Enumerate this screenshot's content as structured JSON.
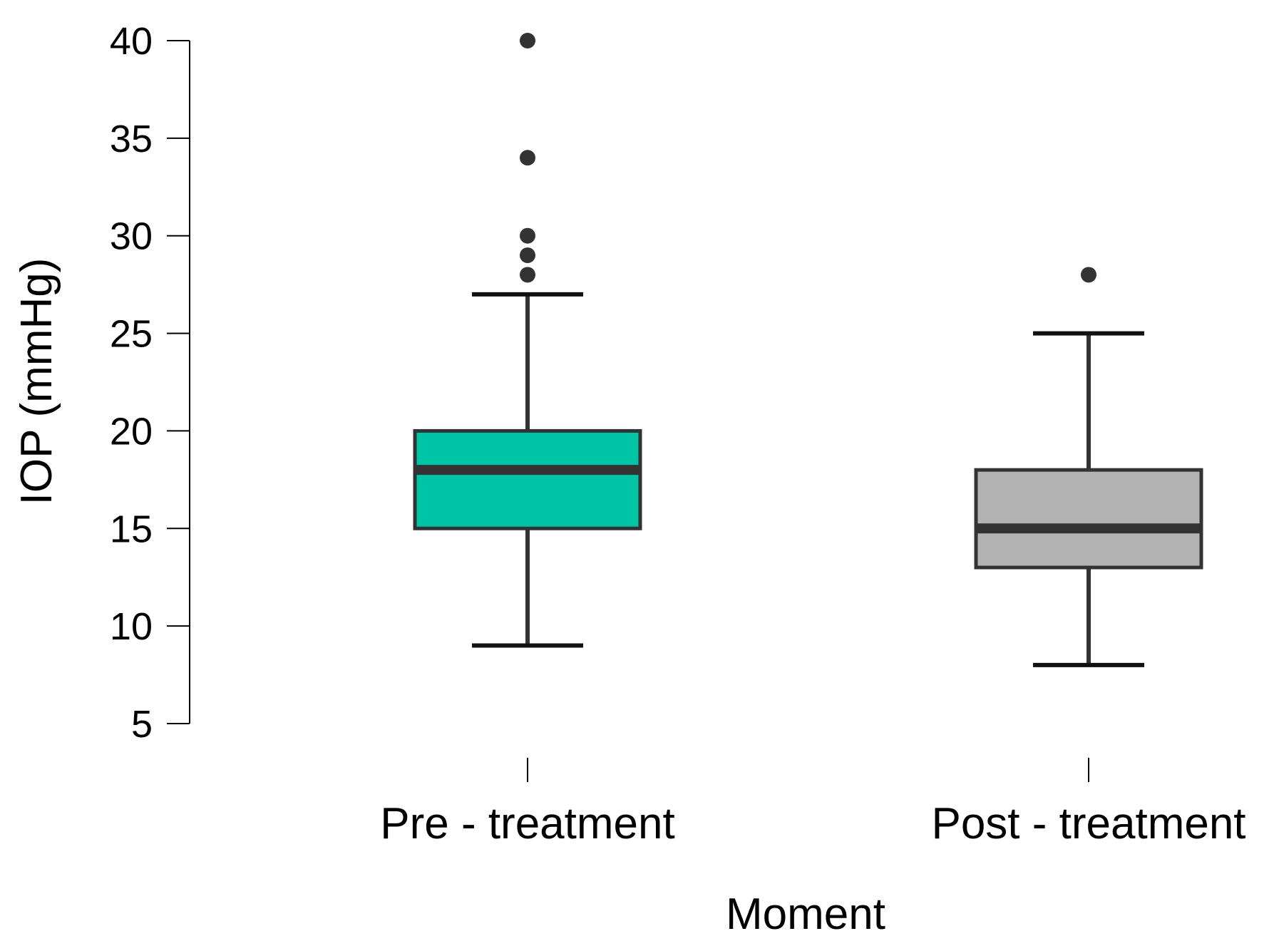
{
  "chart_data": {
    "type": "box",
    "title": "",
    "xlabel": "Moment",
    "ylabel": "IOP (mmHg)",
    "ylim": [
      5,
      40
    ],
    "yticks": [
      5,
      10,
      15,
      20,
      25,
      30,
      35,
      40
    ],
    "grid": false,
    "legend": "none",
    "categories": [
      "Pre - treatment",
      "Post - treatment"
    ],
    "boxes": [
      {
        "category": "Pre - treatment",
        "whisker_low": 9,
        "q1": 15,
        "median": 18,
        "q3": 20,
        "whisker_high": 27,
        "outliers": [
          28,
          29,
          30,
          34,
          40
        ],
        "fill": "#00c4a6"
      },
      {
        "category": "Post - treatment",
        "whisker_low": 8,
        "q1": 13,
        "median": 15,
        "q3": 18,
        "whisker_high": 25,
        "outliers": [
          28
        ],
        "fill": "#b3b3b3"
      }
    ],
    "colors": {
      "line": "#333333",
      "axis": "#000000"
    }
  }
}
